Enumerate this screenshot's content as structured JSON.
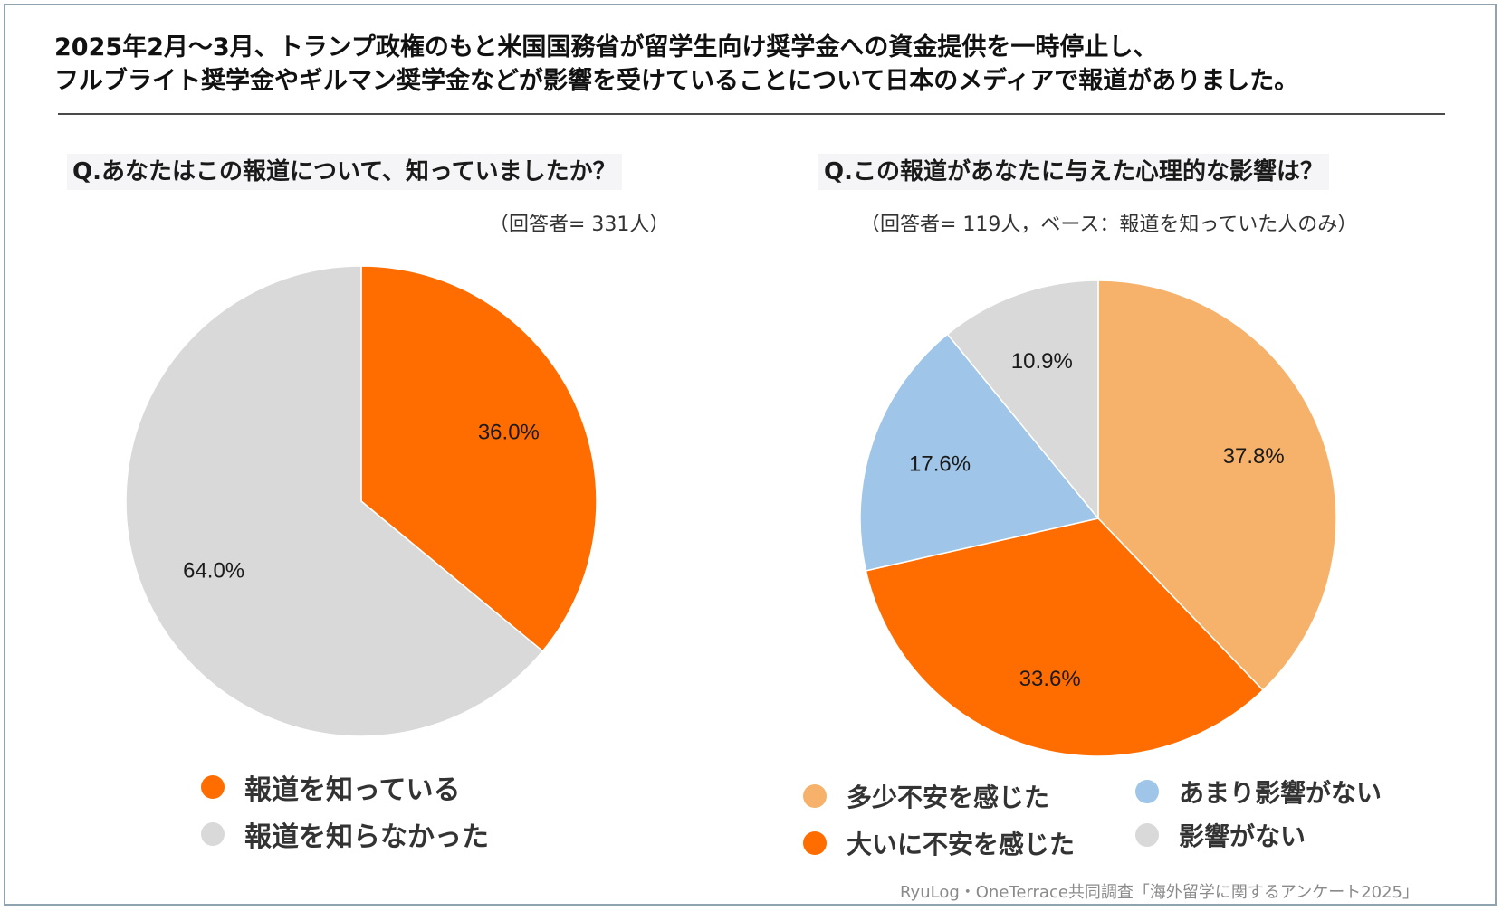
{
  "headline": {
    "line1": "2025年2月〜3月、トランプ政権のもと米国国務省が留学生向け奨学金への資金提供を一時停止し、",
    "line2": "フルブライト奨学金やギルマン奨学金などが影響を受けていることについて日本のメディアで報道がありました。"
  },
  "footer": "RyuLog・OneTerrace共同調査「海外留学に関するアンケート2025」",
  "chart_data": [
    {
      "type": "pie",
      "title": "Q.あなたはこの報道について、知っていましたか？",
      "subtitle": "（回答者= 331人）",
      "slices": [
        {
          "label": "報道を知っている",
          "value": 36.0,
          "display": "36.0%",
          "color": "#ff6d00"
        },
        {
          "label": "報道を知らなかった",
          "value": 64.0,
          "display": "64.0%",
          "color": "#d9d9d9"
        }
      ],
      "legend_position": "bottom"
    },
    {
      "type": "pie",
      "title": "Q.この報道があなたに与えた心理的な影響は？",
      "subtitle": "（回答者= 119人，ベース：報道を知っていた人のみ）",
      "slices": [
        {
          "label": "多少不安を感じた",
          "value": 37.8,
          "display": "37.8%",
          "color": "#f6b26b"
        },
        {
          "label": "大いに不安を感じた",
          "value": 33.6,
          "display": "33.6%",
          "color": "#ff6d00"
        },
        {
          "label": "あまり影響がない",
          "value": 17.6,
          "display": "17.6%",
          "color": "#9fc5e8"
        },
        {
          "label": "影響がない",
          "value": 10.9,
          "display": "10.9%",
          "color": "#d9d9d9"
        }
      ],
      "legend_position": "bottom"
    }
  ]
}
